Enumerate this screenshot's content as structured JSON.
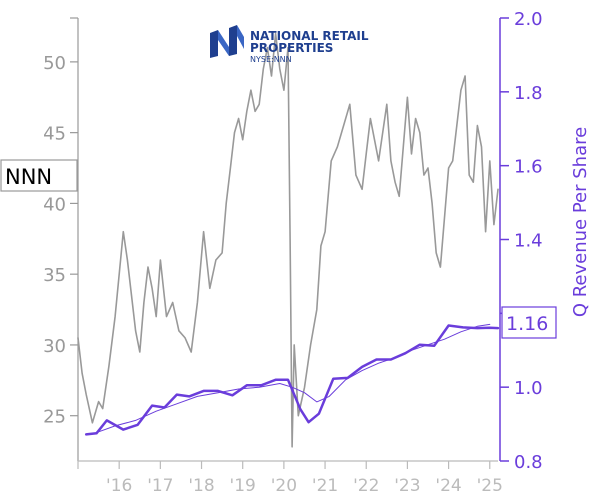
{
  "chart_data": {
    "type": "line",
    "ticker": "NNN",
    "last_value_label": "1.16",
    "right_axis_label": "Q Revenue Per Share",
    "logo": {
      "line1": "NATIONAL RETAIL",
      "line2": "PROPERTIES",
      "line3": "NYSE:NNN"
    },
    "left_axis": {
      "range": [
        21.8,
        53.1
      ],
      "ticks": [
        25,
        30,
        35,
        40,
        45,
        50
      ]
    },
    "right_axis": {
      "range": [
        0.8,
        2.0
      ],
      "ticks": [
        "0.8",
        "1.0",
        "1.2",
        "1.4",
        "1.6",
        "1.8",
        "2.0"
      ]
    },
    "x_axis": {
      "range": [
        2015.0,
        2025.2
      ],
      "tick_positions": [
        2016,
        2017,
        2018,
        2019,
        2020,
        2021,
        2022,
        2023,
        2024,
        2025
      ],
      "tick_labels": [
        "'16",
        "'17",
        "'18",
        "'19",
        "'20",
        "'21",
        "'22",
        "'23",
        "'24",
        "'25"
      ]
    },
    "series": [
      {
        "axis": "left",
        "color": "#999999",
        "x": [
          2015.0,
          2015.1,
          2015.2,
          2015.35,
          2015.5,
          2015.6,
          2015.75,
          2015.9,
          2016.0,
          2016.1,
          2016.2,
          2016.3,
          2016.4,
          2016.5,
          2016.6,
          2016.7,
          2016.8,
          2016.9,
          2017.0,
          2017.15,
          2017.3,
          2017.45,
          2017.6,
          2017.75,
          2017.9,
          2018.05,
          2018.2,
          2018.35,
          2018.5,
          2018.6,
          2018.7,
          2018.8,
          2018.9,
          2019.0,
          2019.1,
          2019.2,
          2019.3,
          2019.4,
          2019.5,
          2019.6,
          2019.7,
          2019.8,
          2019.9,
          2020.0,
          2020.1,
          2020.15,
          2020.2,
          2020.25,
          2020.35,
          2020.5,
          2020.65,
          2020.8,
          2020.9,
          2021.0,
          2021.15,
          2021.3,
          2021.45,
          2021.6,
          2021.75,
          2021.9,
          2022.0,
          2022.1,
          2022.2,
          2022.3,
          2022.4,
          2022.5,
          2022.6,
          2022.7,
          2022.8,
          2022.9,
          2023.0,
          2023.1,
          2023.2,
          2023.3,
          2023.4,
          2023.5,
          2023.6,
          2023.7,
          2023.8,
          2023.9,
          2024.0,
          2024.1,
          2024.2,
          2024.3,
          2024.4,
          2024.5,
          2024.6,
          2024.7,
          2024.8,
          2024.9,
          2025.0,
          2025.1,
          2025.2
        ],
        "values": [
          30.5,
          28.0,
          26.5,
          24.5,
          26.0,
          25.5,
          28.5,
          32.0,
          35.0,
          38.0,
          36.0,
          33.5,
          31.0,
          29.5,
          33.0,
          35.5,
          34.0,
          32.0,
          36.0,
          32.0,
          33.0,
          31.0,
          30.5,
          29.5,
          33.0,
          38.0,
          34.0,
          36.0,
          36.5,
          40.0,
          42.5,
          45.0,
          46.0,
          44.5,
          46.5,
          48.0,
          46.5,
          47.0,
          49.5,
          51.0,
          49.0,
          52.0,
          49.5,
          48.0,
          51.0,
          37.5,
          22.8,
          30.0,
          25.0,
          27.0,
          30.0,
          32.5,
          37.0,
          38.0,
          43.0,
          44.0,
          45.5,
          47.0,
          42.0,
          41.0,
          43.5,
          46.0,
          44.5,
          43.0,
          45.0,
          47.0,
          43.0,
          41.5,
          40.5,
          44.0,
          47.5,
          43.5,
          46.0,
          45.0,
          42.0,
          42.5,
          40.0,
          36.5,
          35.5,
          39.0,
          42.5,
          43.0,
          45.5,
          48.0,
          49.0,
          42.0,
          41.5,
          45.5,
          44.0,
          38.0,
          43.0,
          38.5,
          41.0
        ]
      },
      {
        "axis": "right",
        "color": "#6a3ddb",
        "width": 2.5,
        "x": [
          2015.2,
          2015.45,
          2015.7,
          2016.1,
          2016.45,
          2016.8,
          2017.1,
          2017.4,
          2017.7,
          2018.05,
          2018.4,
          2018.75,
          2019.1,
          2019.45,
          2019.8,
          2020.1,
          2020.4,
          2020.6,
          2020.85,
          2021.2,
          2021.55,
          2021.9,
          2022.25,
          2022.6,
          2022.95,
          2023.3,
          2023.65,
          2024.0,
          2024.35,
          2024.7,
          2025.0,
          2025.2
        ],
        "values": [
          0.872,
          0.875,
          0.91,
          0.885,
          0.898,
          0.95,
          0.945,
          0.98,
          0.975,
          0.99,
          0.99,
          0.978,
          1.005,
          1.005,
          1.02,
          1.02,
          0.94,
          0.905,
          0.928,
          1.023,
          1.025,
          1.055,
          1.075,
          1.075,
          1.092,
          1.115,
          1.112,
          1.167,
          1.162,
          1.16,
          1.161,
          1.16
        ]
      },
      {
        "axis": "right",
        "color": "#6a3ddb",
        "width": 1,
        "x": [
          2015.4,
          2015.9,
          2016.4,
          2016.9,
          2017.4,
          2017.9,
          2018.4,
          2018.9,
          2019.4,
          2019.9,
          2020.2,
          2020.5,
          2020.8,
          2021.1,
          2021.5,
          2021.9,
          2022.3,
          2022.7,
          2023.1,
          2023.5,
          2023.9,
          2024.3,
          2024.7,
          2025.0
        ],
        "values": [
          0.875,
          0.895,
          0.91,
          0.935,
          0.955,
          0.975,
          0.985,
          0.995,
          1.0,
          1.01,
          1.0,
          0.985,
          0.96,
          0.975,
          1.02,
          1.045,
          1.065,
          1.08,
          1.1,
          1.115,
          1.13,
          1.15,
          1.165,
          1.17
        ]
      }
    ]
  }
}
